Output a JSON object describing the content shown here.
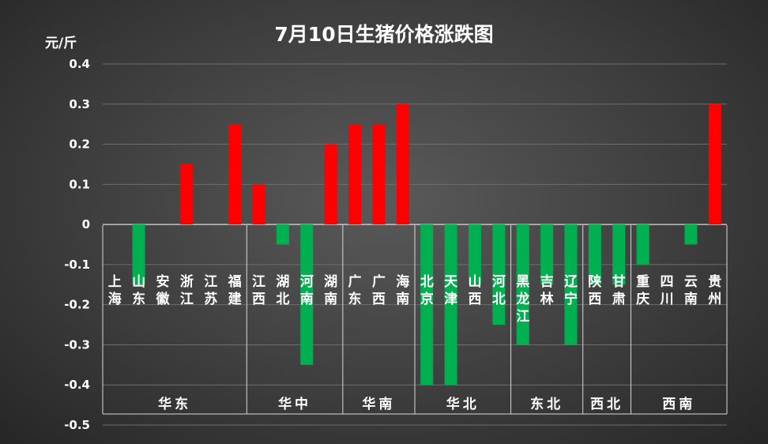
{
  "chart_data": {
    "type": "bar",
    "title": "7月10日生猪价格涨跌图",
    "ylabel": "元/斤",
    "ylim": [
      -0.5,
      0.4
    ],
    "yticks": [
      "0.4",
      "0.3",
      "0.2",
      "0.1",
      "0",
      "-0.1",
      "-0.2",
      "-0.3",
      "-0.4",
      "-0.5"
    ],
    "grid": true,
    "colors": {
      "up": "#ff0000",
      "down": "#00b050",
      "grid": "#6e6e6e",
      "axis": "#d9d9d9"
    },
    "categories": [
      "上海",
      "山东",
      "安徽",
      "浙江",
      "江苏",
      "福建",
      "江西",
      "湖北",
      "河南",
      "湖南",
      "广东",
      "广西",
      "海南",
      "北京",
      "天津",
      "山西",
      "河北",
      "黑龙江",
      "吉林",
      "辽宁",
      "陕西",
      "甘肃",
      "重庆",
      "四川",
      "云南",
      "贵州"
    ],
    "values": [
      0,
      -0.15,
      0,
      0.15,
      0,
      0.25,
      0.1,
      -0.05,
      -0.35,
      0.2,
      0.25,
      0.25,
      0.3,
      -0.4,
      -0.4,
      -0.15,
      -0.25,
      -0.3,
      -0.15,
      -0.3,
      -0.15,
      -0.15,
      -0.1,
      0,
      -0.05,
      0.3
    ],
    "groups": [
      {
        "name": "华东",
        "count": 6
      },
      {
        "name": "华中",
        "count": 4
      },
      {
        "name": "华南",
        "count": 3
      },
      {
        "name": "华北",
        "count": 4
      },
      {
        "name": "东北",
        "count": 3
      },
      {
        "name": "西北",
        "count": 2
      },
      {
        "name": "西南",
        "count": 4
      }
    ]
  }
}
